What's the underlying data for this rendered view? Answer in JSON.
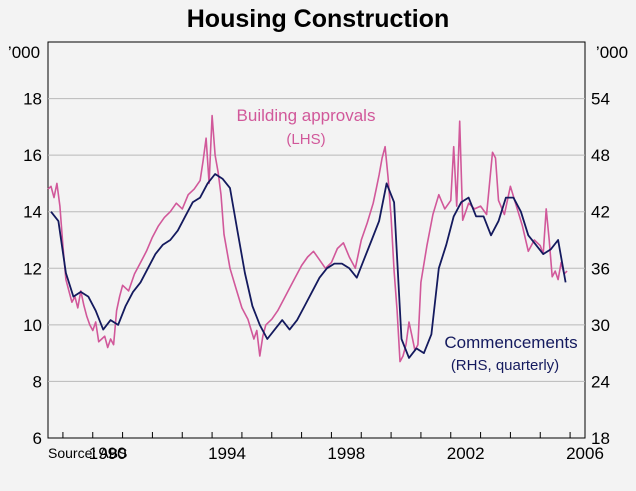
{
  "chart_data": {
    "type": "line",
    "title": "Housing Construction",
    "left_axis": {
      "unit": "’000",
      "range": [
        6,
        20
      ],
      "ticks": [
        "6",
        "8",
        "10",
        "12",
        "14",
        "16",
        "18"
      ]
    },
    "right_axis": {
      "unit": "’000",
      "range": [
        18,
        60
      ],
      "ticks": [
        "18",
        "24",
        "30",
        "36",
        "42",
        "48",
        "54"
      ]
    },
    "x_axis": {
      "range": [
        1988.5,
        2006.5
      ],
      "ticks": [
        "1990",
        "1994",
        "1998",
        "2002",
        "2006"
      ]
    },
    "grid": true,
    "source": "Source: ABS",
    "series": [
      {
        "name": "Building approvals",
        "label_line1": "Building approvals",
        "label_line2": "(LHS)",
        "axis": "left",
        "color": "#d1589a",
        "x": [
          1988.5,
          1988.6,
          1988.7,
          1988.8,
          1988.9,
          1989.0,
          1989.1,
          1989.2,
          1989.3,
          1989.4,
          1989.5,
          1989.6,
          1989.7,
          1989.8,
          1989.9,
          1990.0,
          1990.1,
          1990.2,
          1990.3,
          1990.4,
          1990.5,
          1990.6,
          1990.7,
          1990.8,
          1990.9,
          1991.0,
          1991.2,
          1991.4,
          1991.6,
          1991.8,
          1992.0,
          1992.2,
          1992.4,
          1992.6,
          1992.8,
          1993.0,
          1993.2,
          1993.4,
          1993.6,
          1993.7,
          1993.8,
          1993.9,
          1994.0,
          1994.1,
          1994.2,
          1994.3,
          1994.4,
          1994.5,
          1994.6,
          1994.8,
          1995.0,
          1995.2,
          1995.4,
          1995.5,
          1995.6,
          1995.7,
          1995.8,
          1996.0,
          1996.2,
          1996.4,
          1996.6,
          1996.8,
          1997.0,
          1997.2,
          1997.4,
          1997.6,
          1997.8,
          1998.0,
          1998.2,
          1998.4,
          1998.6,
          1998.8,
          1999.0,
          1999.2,
          1999.4,
          1999.5,
          1999.6,
          1999.7,
          1999.8,
          1999.9,
          2000.0,
          2000.1,
          2000.2,
          2000.3,
          2000.4,
          2000.5,
          2000.6,
          2000.7,
          2000.8,
          2000.9,
          2001.0,
          2001.2,
          2001.4,
          2001.6,
          2001.8,
          2002.0,
          2002.1,
          2002.2,
          2002.3,
          2002.4,
          2002.5,
          2002.6,
          2002.8,
          2003.0,
          2003.2,
          2003.4,
          2003.5,
          2003.6,
          2003.8,
          2004.0,
          2004.2,
          2004.4,
          2004.6,
          2004.8,
          2005.0,
          2005.1,
          2005.2,
          2005.3,
          2005.4,
          2005.5,
          2005.6,
          2005.7,
          2005.8,
          2005.9
        ],
        "values": [
          14.8,
          14.9,
          14.5,
          15.0,
          14.2,
          12.8,
          11.6,
          11.2,
          10.8,
          11.0,
          10.6,
          11.2,
          10.7,
          10.3,
          10.0,
          9.8,
          10.1,
          9.4,
          9.5,
          9.6,
          9.2,
          9.5,
          9.3,
          10.5,
          11.0,
          11.4,
          11.2,
          11.8,
          12.2,
          12.6,
          13.1,
          13.5,
          13.8,
          14.0,
          14.3,
          14.1,
          14.6,
          14.8,
          15.1,
          15.8,
          16.6,
          15.0,
          17.4,
          16.0,
          15.4,
          14.6,
          13.2,
          12.6,
          12.0,
          11.3,
          10.6,
          10.2,
          9.5,
          9.8,
          8.9,
          9.6,
          10.0,
          10.2,
          10.5,
          10.9,
          11.3,
          11.7,
          12.1,
          12.4,
          12.6,
          12.3,
          12.0,
          12.2,
          12.7,
          12.9,
          12.4,
          12.0,
          13.0,
          13.6,
          14.3,
          14.8,
          15.3,
          15.9,
          16.3,
          15.2,
          13.8,
          11.9,
          10.5,
          8.7,
          8.9,
          9.3,
          10.1,
          9.6,
          9.1,
          9.3,
          11.5,
          12.8,
          13.9,
          14.6,
          14.1,
          14.4,
          16.3,
          14.2,
          17.2,
          13.7,
          14.0,
          14.3,
          14.1,
          14.2,
          13.9,
          16.1,
          15.9,
          14.4,
          13.9,
          14.9,
          14.2,
          13.5,
          12.6,
          13.0,
          12.8,
          12.5,
          14.1,
          13.0,
          11.7,
          11.9,
          11.6,
          12.2,
          11.8,
          11.9
        ]
      },
      {
        "name": "Commencements",
        "label_line1": "Commencements",
        "label_line2": "(RHS, quarterly)",
        "axis": "right",
        "color": "#141a5e",
        "x": [
          1988.6,
          1988.85,
          1989.1,
          1989.35,
          1989.6,
          1989.85,
          1990.1,
          1990.35,
          1990.6,
          1990.85,
          1991.1,
          1991.35,
          1991.6,
          1991.85,
          1992.1,
          1992.35,
          1992.6,
          1992.85,
          1993.1,
          1993.35,
          1993.6,
          1993.85,
          1994.1,
          1994.35,
          1994.6,
          1994.85,
          1995.1,
          1995.35,
          1995.6,
          1995.85,
          1996.1,
          1996.35,
          1996.6,
          1996.85,
          1997.1,
          1997.35,
          1997.6,
          1997.85,
          1998.1,
          1998.35,
          1998.6,
          1998.85,
          1999.1,
          1999.35,
          1999.6,
          1999.85,
          2000.1,
          2000.35,
          2000.6,
          2000.85,
          2001.1,
          2001.35,
          2001.6,
          2001.85,
          2002.1,
          2002.35,
          2002.6,
          2002.85,
          2003.1,
          2003.35,
          2003.6,
          2003.85,
          2004.1,
          2004.35,
          2004.6,
          2004.85,
          2005.1,
          2005.35,
          2005.6,
          2005.85
        ],
        "values": [
          42.0,
          41.0,
          35.5,
          33.0,
          33.5,
          33.0,
          31.5,
          29.5,
          30.5,
          30.0,
          32.0,
          33.5,
          34.5,
          36.0,
          37.5,
          38.5,
          39.0,
          40.0,
          41.5,
          43.0,
          43.5,
          45.0,
          46.0,
          45.5,
          44.5,
          40.0,
          35.5,
          32.0,
          30.0,
          28.5,
          29.5,
          30.5,
          29.5,
          30.5,
          32.0,
          33.5,
          35.0,
          36.0,
          36.5,
          36.5,
          36.0,
          35.0,
          37.0,
          39.0,
          41.0,
          45.0,
          43.0,
          28.5,
          26.5,
          27.5,
          27.0,
          29.0,
          36.0,
          38.5,
          41.5,
          43.0,
          43.5,
          41.5,
          41.5,
          39.5,
          41.0,
          43.5,
          43.5,
          42.0,
          39.5,
          38.5,
          37.5,
          38.0,
          39.0,
          34.5
        ]
      }
    ]
  }
}
